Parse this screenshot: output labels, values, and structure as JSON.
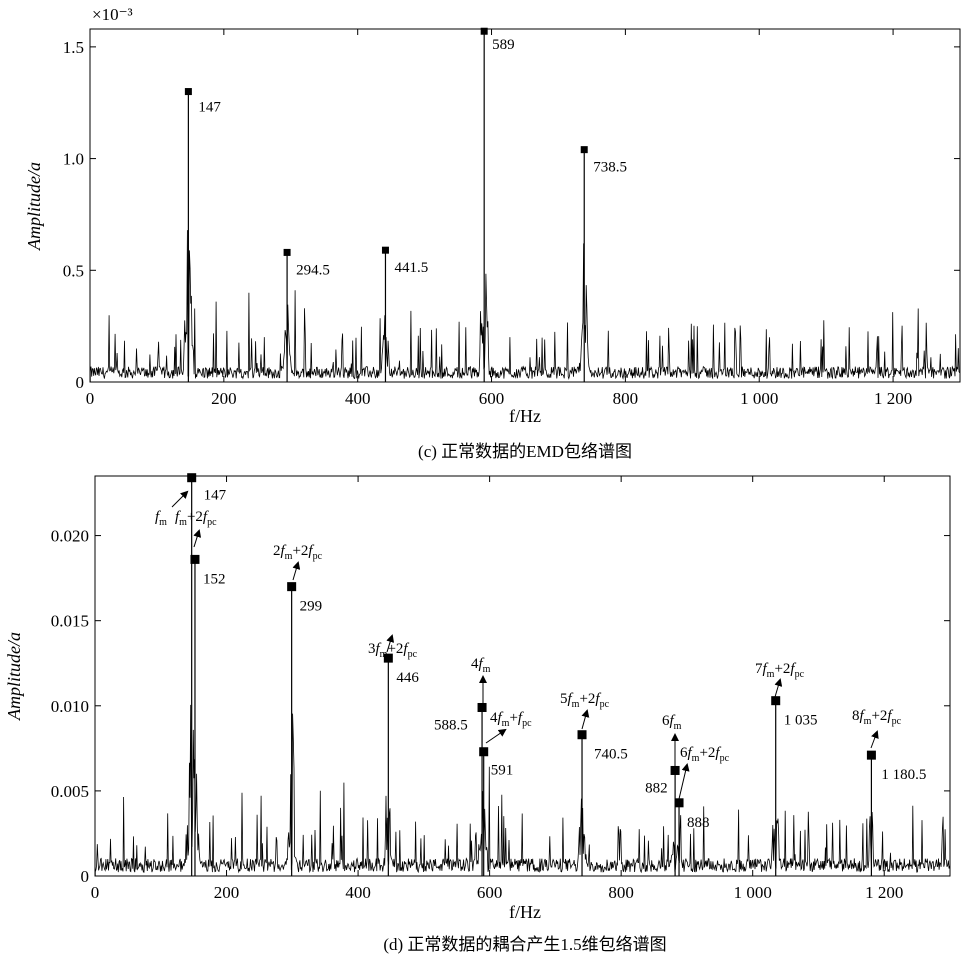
{
  "chart_data": [
    {
      "id": "c",
      "type": "line",
      "caption": "(c) 正常数据的EMD包络谱图",
      "xlabel": "f/Hz",
      "ylabel": "Amplitude/a",
      "multiplier": "×10⁻³",
      "xlim": [
        0,
        1300
      ],
      "ylim": [
        0,
        1.58
      ],
      "xticks": [
        0,
        200,
        400,
        600,
        800,
        1000,
        1200
      ],
      "xtick_labels": [
        "0",
        "200",
        "400",
        "600",
        "800",
        "1 000",
        "1 200"
      ],
      "yticks": [
        0,
        0.5,
        1.0,
        1.5
      ],
      "ytick_labels": [
        "0",
        "0.5",
        "1.0",
        "1.5"
      ],
      "peaks": [
        {
          "x": 147,
          "y": 1.3,
          "label": "147"
        },
        {
          "x": 294.5,
          "y": 0.58,
          "label": "294.5"
        },
        {
          "x": 441.5,
          "y": 0.59,
          "label": "441.5"
        },
        {
          "x": 589,
          "y": 1.57,
          "label": "589"
        },
        {
          "x": 738.5,
          "y": 1.04,
          "label": "738.5"
        }
      ],
      "noise_level": 0.06
    },
    {
      "id": "d",
      "type": "line",
      "caption": "(d) 正常数据的耦合产生1.5维包络谱图",
      "xlabel": "f/Hz",
      "ylabel": "Amplitude/a",
      "xlim": [
        0,
        1300
      ],
      "ylim": [
        0,
        0.0235
      ],
      "xticks": [
        0,
        200,
        400,
        600,
        800,
        1000,
        1200
      ],
      "xtick_labels": [
        "0",
        "200",
        "400",
        "600",
        "800",
        "1 000",
        "1 200"
      ],
      "yticks": [
        0,
        0.005,
        0.01,
        0.015,
        0.02
      ],
      "ytick_labels": [
        "0",
        "0.005",
        "0.010",
        "0.015",
        "0.020"
      ],
      "peaks": [
        {
          "x": 147,
          "y": 0.0234,
          "label": "147"
        },
        {
          "x": 152,
          "y": 0.0186,
          "label": "152"
        },
        {
          "x": 299,
          "y": 0.017,
          "label": "299"
        },
        {
          "x": 446,
          "y": 0.0128,
          "label": "446"
        },
        {
          "x": 588.5,
          "y": 0.0099,
          "label": "588.5"
        },
        {
          "x": 591,
          "y": 0.0073,
          "label": "591"
        },
        {
          "x": 740.5,
          "y": 0.0083,
          "label": "740.5"
        },
        {
          "x": 882,
          "y": 0.0062,
          "label": "882"
        },
        {
          "x": 888,
          "y": 0.0043,
          "label": "888"
        },
        {
          "x": 1035,
          "y": 0.0103,
          "label": "1 035"
        },
        {
          "x": 1180.5,
          "y": 0.0071,
          "label": "1 180.5"
        }
      ],
      "annotations": [
        {
          "coef": "",
          "base": "f",
          "sub": "m",
          "tail": "",
          "tailsub": ""
        },
        {
          "coef": "",
          "base": "f",
          "sub": "m",
          "tail": "+2f",
          "tailsub": "pc"
        },
        {
          "coef": "2",
          "base": "f",
          "sub": "m",
          "tail": "+2f",
          "tailsub": "pc"
        },
        {
          "coef": "3",
          "base": "f",
          "sub": "m",
          "tail": "+2f",
          "tailsub": "pc"
        },
        {
          "coef": "4",
          "base": "f",
          "sub": "m",
          "tail": "",
          "tailsub": ""
        },
        {
          "coef": "4",
          "base": "f",
          "sub": "m",
          "tail": "+f",
          "tailsub": "pc"
        },
        {
          "coef": "5",
          "base": "f",
          "sub": "m",
          "tail": "+2f",
          "tailsub": "pc"
        },
        {
          "coef": "6",
          "base": "f",
          "sub": "m",
          "tail": "",
          "tailsub": ""
        },
        {
          "coef": "6",
          "base": "f",
          "sub": "m",
          "tail": "+2f",
          "tailsub": "pc"
        },
        {
          "coef": "7",
          "base": "f",
          "sub": "m",
          "tail": "+2f",
          "tailsub": "pc"
        },
        {
          "coef": "8",
          "base": "f",
          "sub": "m",
          "tail": "+2f",
          "tailsub": "pc"
        }
      ],
      "noise_level": 0.0009
    }
  ]
}
